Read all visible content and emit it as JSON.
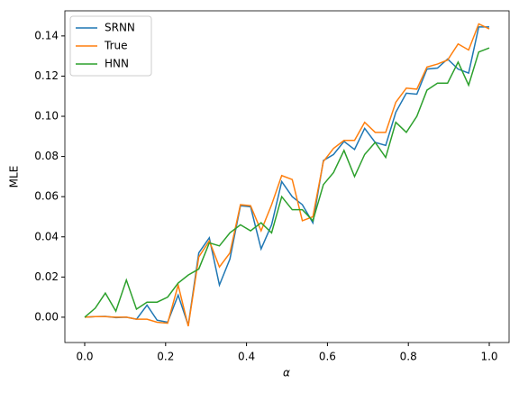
{
  "chart_data": {
    "type": "line",
    "x_label": "α",
    "y_label": "MLE",
    "x": [
      0,
      0.026,
      0.051,
      0.077,
      0.103,
      0.128,
      0.154,
      0.179,
      0.205,
      0.231,
      0.256,
      0.282,
      0.308,
      0.333,
      0.359,
      0.385,
      0.41,
      0.436,
      0.462,
      0.487,
      0.513,
      0.538,
      0.564,
      0.59,
      0.615,
      0.641,
      0.667,
      0.692,
      0.718,
      0.744,
      0.769,
      0.795,
      0.821,
      0.846,
      0.872,
      0.897,
      0.923,
      0.949,
      0.974,
      1
    ],
    "series": [
      {
        "name": "SRNN",
        "color": "#1f77b4",
        "values": [
          0,
          0.0003,
          0.0004,
          -0.0002,
          0,
          -0.001,
          0.006,
          -0.0015,
          -0.0025,
          0.011,
          -0.004,
          0.032,
          0.0395,
          0.016,
          0.029,
          0.0555,
          0.055,
          0.034,
          0.046,
          0.0675,
          0.06,
          0.056,
          0.047,
          0.078,
          0.081,
          0.0875,
          0.0835,
          0.094,
          0.087,
          0.0855,
          0.102,
          0.1115,
          0.111,
          0.1235,
          0.124,
          0.1285,
          0.1235,
          0.1215,
          0.1445,
          0.1445
        ]
      },
      {
        "name": "True",
        "color": "#ff7f0e",
        "values": [
          0,
          0.0003,
          0.0003,
          0,
          0,
          -0.001,
          -0.001,
          -0.0025,
          -0.003,
          0.016,
          -0.0045,
          0.03,
          0.038,
          0.025,
          0.032,
          0.056,
          0.0555,
          0.043,
          0.056,
          0.0705,
          0.0685,
          0.048,
          0.05,
          0.0775,
          0.084,
          0.088,
          0.088,
          0.097,
          0.092,
          0.092,
          0.107,
          0.114,
          0.1135,
          0.1245,
          0.126,
          0.128,
          0.136,
          0.133,
          0.146,
          0.1435
        ]
      },
      {
        "name": "HNN",
        "color": "#2ca02c",
        "values": [
          0,
          0.0045,
          0.012,
          0.003,
          0.0185,
          0.004,
          0.0075,
          0.0075,
          0.01,
          0.017,
          0.021,
          0.024,
          0.037,
          0.0355,
          0.042,
          0.046,
          0.043,
          0.047,
          0.042,
          0.06,
          0.0535,
          0.0535,
          0.048,
          0.066,
          0.072,
          0.083,
          0.07,
          0.081,
          0.087,
          0.0795,
          0.097,
          0.092,
          0.1,
          0.113,
          0.1165,
          0.1165,
          0.127,
          0.1155,
          0.132,
          0.134
        ]
      }
    ],
    "xlim": [
      -0.049,
      1.049
    ],
    "ylim": [
      -0.0126,
      0.1525
    ],
    "xticks": [
      {
        "value": 0,
        "label": "0.0"
      },
      {
        "value": 0.2,
        "label": "0.2"
      },
      {
        "value": 0.4,
        "label": "0.4"
      },
      {
        "value": 0.6,
        "label": "0.6"
      },
      {
        "value": 0.8,
        "label": "0.8"
      },
      {
        "value": 1,
        "label": "1.0"
      }
    ],
    "yticks": [
      {
        "value": 0,
        "label": "0.00"
      },
      {
        "value": 0.02,
        "label": "0.02"
      },
      {
        "value": 0.04,
        "label": "0.04"
      },
      {
        "value": 0.06,
        "label": "0.06"
      },
      {
        "value": 0.08,
        "label": "0.08"
      },
      {
        "value": 0.1,
        "label": "0.10"
      },
      {
        "value": 0.12,
        "label": "0.12"
      },
      {
        "value": 0.14,
        "label": "0.14"
      }
    ],
    "legend": "upper left"
  }
}
